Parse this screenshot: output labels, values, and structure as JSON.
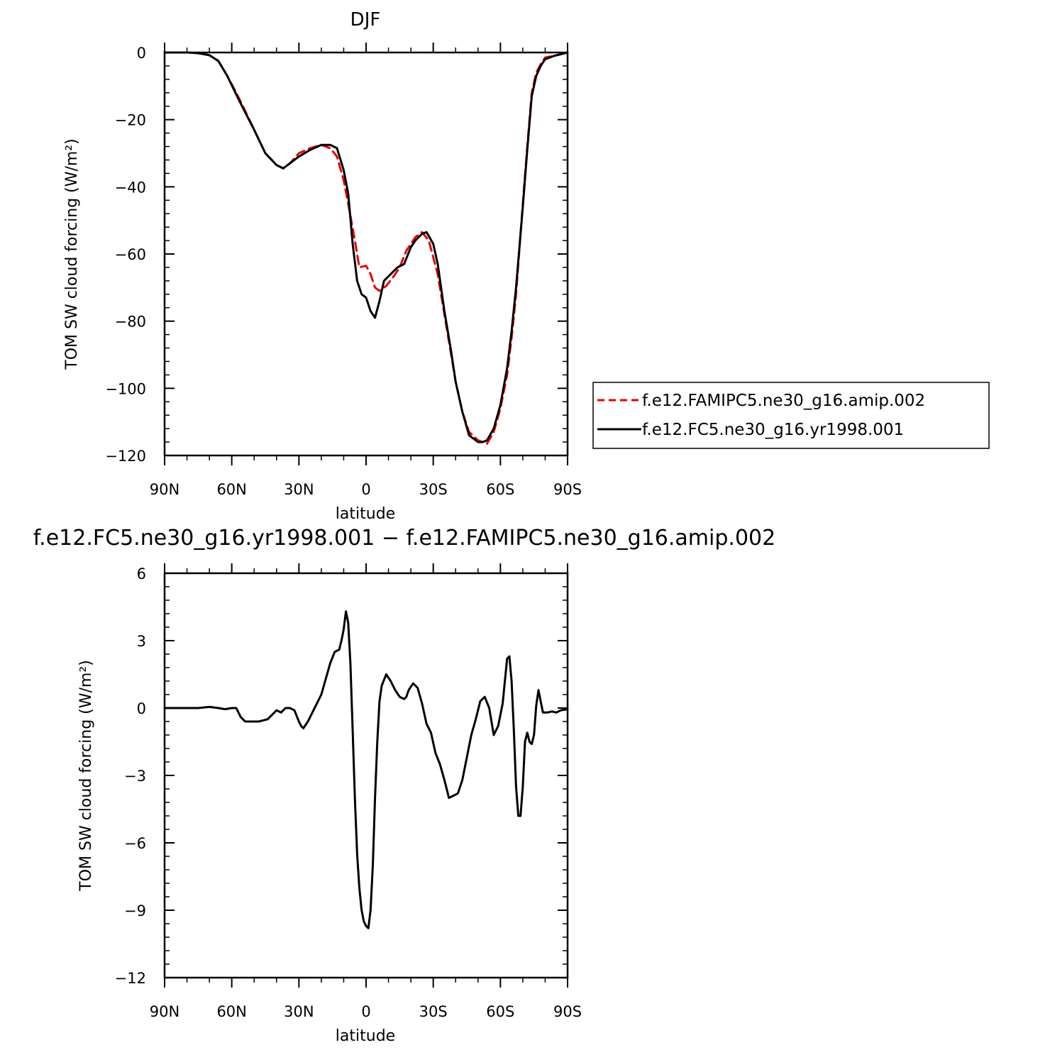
{
  "chart_data": [
    {
      "type": "line",
      "title": "DJF",
      "xlabel": "latitude",
      "ylabel": "TOM SW cloud forcing (W/m²)",
      "xlim": [
        90,
        -90
      ],
      "ylim": [
        -120,
        0
      ],
      "x_ticks": [
        90,
        60,
        30,
        0,
        -30,
        -60,
        -90
      ],
      "x_tick_labels": [
        "90N",
        "60N",
        "30N",
        "0",
        "30S",
        "60S",
        "90S"
      ],
      "y_ticks": [
        0,
        -20,
        -40,
        -60,
        -80,
        -100,
        -120
      ],
      "y_tick_labels": [
        "0",
        "−20",
        "−40",
        "−60",
        "−80",
        "−100",
        "−120"
      ],
      "legend": {
        "position": "right",
        "entries": [
          "f.e12.FAMIPC5.ne30_g16.amip.002",
          "f.e12.FC5.ne30_g16.yr1998.001"
        ]
      },
      "series": [
        {
          "name": "f.e12.FAMIPC5.ne30_g16.amip.002",
          "color": "#e60000",
          "dash": "dashed",
          "x": [
            90,
            80,
            75,
            70,
            66,
            62,
            58,
            55,
            50,
            45,
            40,
            37,
            34,
            30,
            25,
            20,
            16,
            13,
            10,
            8,
            5,
            3,
            0,
            -2,
            -4,
            -6,
            -9,
            -12,
            -15,
            -18,
            -20,
            -22,
            -25,
            -28,
            -30,
            -32,
            -35,
            -38,
            -40,
            -43,
            -46,
            -50,
            -52,
            -54,
            -57,
            -60,
            -63,
            -65,
            -67,
            -70,
            -72,
            -74,
            -76,
            -78,
            -80,
            -84,
            -87,
            -90
          ],
          "y": [
            0,
            0,
            -0.2,
            -0.8,
            -2.5,
            -7,
            -12,
            -16,
            -23,
            -30,
            -33.5,
            -34.5,
            -33,
            -30,
            -28.5,
            -27.5,
            -28.5,
            -31,
            -38,
            -45,
            -56,
            -64,
            -63.5,
            -66,
            -70,
            -71,
            -69.5,
            -67,
            -64,
            -59,
            -57,
            -55,
            -53.5,
            -56,
            -61,
            -66,
            -78,
            -90,
            -98,
            -107,
            -113,
            -115.5,
            -116,
            -116.5,
            -113,
            -106,
            -96,
            -85,
            -72,
            -45,
            -28,
            -12,
            -6,
            -3.5,
            -1.5,
            -1,
            -0.5,
            0
          ]
        },
        {
          "name": "f.e12.FC5.ne30_g16.yr1998.001",
          "color": "#000000",
          "dash": "solid",
          "x": [
            90,
            80,
            75,
            70,
            66,
            62,
            58,
            55,
            50,
            45,
            40,
            37,
            34,
            30,
            25,
            20,
            16,
            13,
            10,
            8,
            6,
            4,
            2,
            0,
            -2,
            -4,
            -6,
            -8,
            -11,
            -14,
            -17,
            -20,
            -22,
            -25,
            -27,
            -30,
            -32,
            -35,
            -38,
            -40,
            -43,
            -46,
            -50,
            -52,
            -54,
            -57,
            -60,
            -63,
            -65,
            -67,
            -70,
            -72,
            -74,
            -76,
            -78,
            -80,
            -84,
            -87,
            -90
          ],
          "y": [
            0,
            0,
            -0.2,
            -0.8,
            -2.5,
            -7,
            -12.5,
            -16.5,
            -23,
            -30,
            -33.5,
            -34.5,
            -33,
            -31,
            -29,
            -27.5,
            -27.5,
            -28.5,
            -35,
            -42,
            -57,
            -68,
            -72,
            -73,
            -77,
            -79,
            -74,
            -68,
            -66,
            -64,
            -63,
            -58,
            -56,
            -54,
            -53.5,
            -57,
            -63,
            -77,
            -89,
            -98,
            -107,
            -114,
            -116,
            -116,
            -115.5,
            -112,
            -105,
            -94,
            -83,
            -70,
            -46,
            -29,
            -13,
            -7,
            -4,
            -2,
            -1,
            -0.5,
            0
          ]
        }
      ]
    },
    {
      "type": "line",
      "title": "f.e12.FC5.ne30_g16.yr1998.001 − f.e12.FAMIPC5.ne30_g16.amip.002",
      "xlabel": "latitude",
      "ylabel": "TOM SW cloud forcing (W/m²)",
      "xlim": [
        90,
        -90
      ],
      "ylim": [
        -12,
        6
      ],
      "x_ticks": [
        90,
        60,
        30,
        0,
        -30,
        -60,
        -90
      ],
      "x_tick_labels": [
        "90N",
        "60N",
        "30N",
        "0",
        "30S",
        "60S",
        "90S"
      ],
      "y_ticks": [
        6,
        3,
        0,
        -3,
        -6,
        -9,
        -12
      ],
      "y_tick_labels": [
        "6",
        "3",
        "0",
        "−3",
        "−6",
        "−9",
        "−12"
      ],
      "series": [
        {
          "color": "#000000",
          "dash": "solid",
          "x": [
            90,
            80,
            75,
            70,
            66,
            63,
            60,
            58,
            56,
            54,
            52,
            50,
            48,
            46,
            44,
            42,
            40,
            38,
            36,
            34,
            32,
            30,
            29,
            28,
            26,
            24,
            22,
            20,
            18,
            16,
            14,
            12,
            11,
            10,
            9,
            8,
            7,
            6,
            5,
            4,
            3,
            2,
            1,
            0,
            -1,
            -2,
            -3,
            -4,
            -5,
            -6,
            -7,
            -9,
            -11,
            -13,
            -15,
            -17,
            -18,
            -19,
            -21,
            -23,
            -25,
            -27,
            -29,
            -31,
            -33,
            -35,
            -37,
            -39,
            -41,
            -43,
            -45,
            -47,
            -49,
            -51,
            -53,
            -55,
            -57,
            -59,
            -61,
            -63,
            -64,
            -65,
            -66,
            -67,
            -68,
            -69,
            -70,
            -71,
            -72,
            -73,
            -74,
            -75,
            -76,
            -77,
            -78,
            -79,
            -81,
            -83,
            -85,
            -87,
            -90
          ],
          "y": [
            0,
            0,
            0,
            0.05,
            0,
            -0.05,
            0,
            0,
            -0.4,
            -0.6,
            -0.6,
            -0.6,
            -0.6,
            -0.55,
            -0.5,
            -0.3,
            -0.1,
            -0.2,
            0,
            0,
            -0.1,
            -0.6,
            -0.8,
            -0.9,
            -0.6,
            -0.2,
            0.2,
            0.6,
            1.3,
            2,
            2.5,
            2.6,
            3,
            3.5,
            4.3,
            3.8,
            2,
            -1,
            -4,
            -6.5,
            -8,
            -9,
            -9.5,
            -9.7,
            -9.8,
            -9,
            -7,
            -4,
            -1.5,
            0.3,
            1,
            1.5,
            1.2,
            0.8,
            0.5,
            0.4,
            0.5,
            0.8,
            1.1,
            0.9,
            0.2,
            -0.7,
            -1.1,
            -2,
            -2.5,
            -3.2,
            -4,
            -3.9,
            -3.8,
            -3.2,
            -2.2,
            -1.2,
            -0.5,
            0.3,
            0.5,
            0,
            -1.2,
            -0.8,
            0.2,
            2.2,
            2.3,
            1.2,
            -1,
            -3.5,
            -4.8,
            -4.8,
            -3.5,
            -1.5,
            -1.1,
            -1.5,
            -1.6,
            -1.2,
            0.1,
            0.8,
            0.3,
            -0.2,
            -0.2,
            -0.15,
            -0.2,
            -0.1,
            -0.05
          ]
        }
      ]
    }
  ]
}
